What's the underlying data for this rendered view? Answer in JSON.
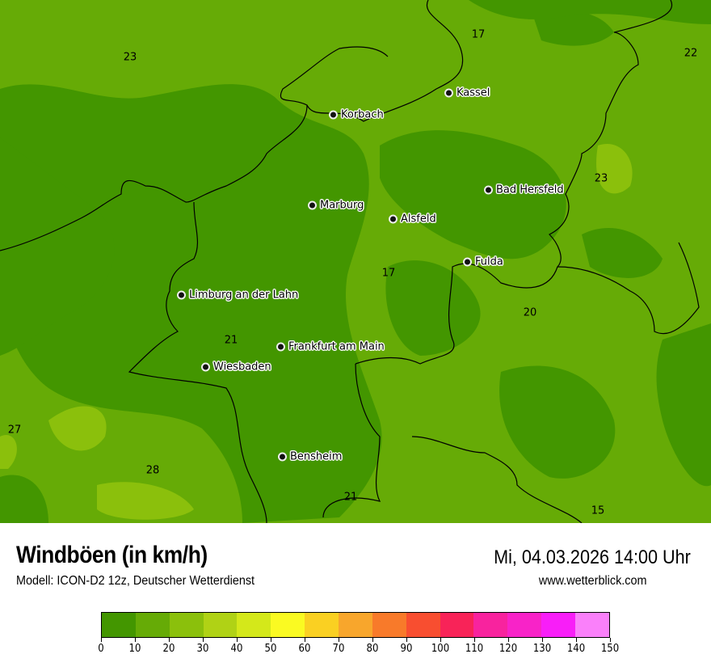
{
  "header": {
    "title": "Windböen (in km/h)",
    "subtitle": "Modell: ICON-D2 12z, Deutscher Wetterdienst",
    "datetime": "Mi, 04.03.2026 14:00 Uhr",
    "website": "www.wetterblick.com"
  },
  "cities": [
    {
      "name": "Kassel"
    },
    {
      "name": "Korbach"
    },
    {
      "name": "Bad Hersfeld"
    },
    {
      "name": "Marburg"
    },
    {
      "name": "Alsfeld"
    },
    {
      "name": "Fulda"
    },
    {
      "name": "Limburg an der Lahn"
    },
    {
      "name": "Frankfurt am Main"
    },
    {
      "name": "Wiesbaden"
    },
    {
      "name": "Bensheim"
    }
  ],
  "values": [
    "23",
    "17",
    "22",
    "23",
    "17",
    "20",
    "21",
    "27",
    "28",
    "21",
    "15"
  ],
  "legend": {
    "unit": "km/h",
    "ticks": [
      "0",
      "10",
      "20",
      "30",
      "40",
      "50",
      "60",
      "70",
      "80",
      "90",
      "100",
      "110",
      "120",
      "130",
      "140",
      "150"
    ],
    "colors": [
      "#439600",
      "#66ab06",
      "#8bc00c",
      "#b0d215",
      "#d4e81a",
      "#fafa22",
      "#fad022",
      "#f8a62c",
      "#f87a2a",
      "#f84e30",
      "#f82358",
      "#f8239e",
      "#f823c8",
      "#f81ef8",
      "#fa80fa"
    ]
  }
}
